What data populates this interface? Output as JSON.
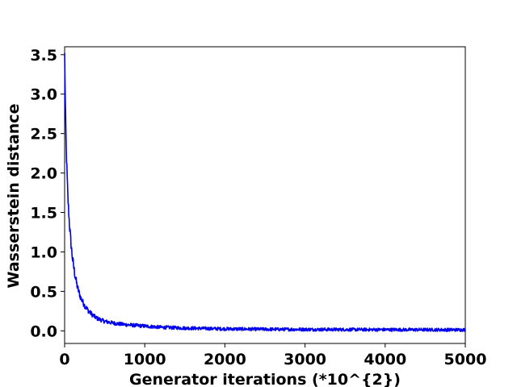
{
  "chart_data": {
    "type": "line",
    "title": "",
    "xlabel": "Generator iterations (*10^{2})",
    "ylabel": "Wasserstein distance",
    "xlim": [
      0,
      5000
    ],
    "ylim": [
      -0.16,
      3.6
    ],
    "x_ticks": [
      0,
      1000,
      2000,
      3000,
      4000,
      5000
    ],
    "x_tick_labels": [
      "0",
      "1000",
      "2000",
      "3000",
      "4000",
      "5000"
    ],
    "y_ticks": [
      0.0,
      0.5,
      1.0,
      1.5,
      2.0,
      2.5,
      3.0,
      3.5
    ],
    "y_tick_labels": [
      "0.0",
      "0.5",
      "1.0",
      "1.5",
      "2.0",
      "2.5",
      "3.0",
      "3.5"
    ],
    "grid": false,
    "legend": "none",
    "series": [
      {
        "color": "#0000ee",
        "x": [
          0,
          10,
          20,
          40,
          60,
          80,
          100,
          130,
          160,
          200,
          250,
          300,
          350,
          400,
          500,
          600,
          700,
          800,
          1000,
          1200,
          1500,
          2000,
          2500,
          3000,
          3500,
          4000,
          4500,
          5000
        ],
        "y": [
          3.5,
          2.8,
          2.3,
          1.7,
          1.35,
          1.1,
          0.9,
          0.7,
          0.55,
          0.42,
          0.32,
          0.25,
          0.2,
          0.16,
          0.12,
          0.1,
          0.085,
          0.075,
          0.06,
          0.045,
          0.035,
          0.025,
          0.02,
          0.018,
          0.016,
          0.015,
          0.014,
          0.013
        ],
        "noise_amplitude": 0.02
      }
    ]
  }
}
